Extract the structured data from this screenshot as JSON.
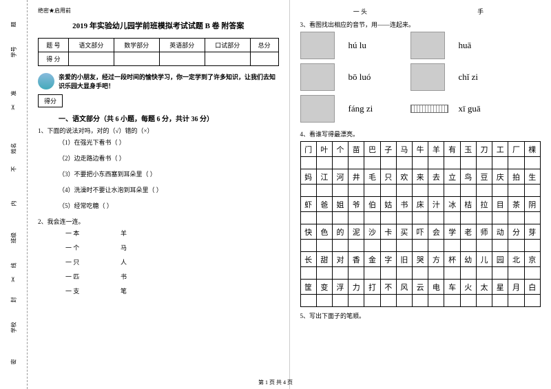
{
  "sidebar": {
    "items": [
      "题",
      "号",
      "学号",
      "准",
      "姓名",
      "不",
      "内",
      "班级",
      "线",
      "封",
      "学校",
      "密"
    ]
  },
  "header_label": "绝密★启用前",
  "title": "2019 年实验幼儿园学前班模拟考试试题 B 卷 附答案",
  "score_table": {
    "row1": [
      "题 号",
      "语文部分",
      "数学部分",
      "英语部分",
      "口试部分",
      "总分"
    ],
    "row2": [
      "得 分",
      "",
      "",
      "",
      "",
      ""
    ]
  },
  "intro": "亲爱的小朋友，经过一段时间的愉快学习，你一定学到了许多知识，让我们去知识乐园大显身手吧！",
  "score_box": "得分",
  "section1_title": "一、语文部分（共 6 小题，每题 6 分，共计 36 分）",
  "q1": "1、下面的说法对吗，对的（√）错的（×）",
  "q1_items": [
    "（1）在强光下看书（  ）",
    "（2）边走路边看书（  ）",
    "（3）不要把小东西塞到耳朵里（  ）",
    "（4）洗澡时不要让水泡到耳朵里（  ）",
    "（5）经常吃糖（  ）"
  ],
  "q2": "2、我会连一连。",
  "q2_matches": [
    {
      "left": "一 本",
      "right": "羊"
    },
    {
      "left": "一 个",
      "right": "马"
    },
    {
      "left": "一 只",
      "right": "人"
    },
    {
      "left": "一 匹",
      "right": "书"
    },
    {
      "left": "一 支",
      "right": "笔"
    }
  ],
  "top_match": {
    "left": "一 头",
    "right": "手"
  },
  "q3": "3、看图找出相应的音节，用——连起来。",
  "pinyin_items": [
    {
      "text": "hú lu"
    },
    {
      "text": "huā"
    },
    {
      "text": "bō luó"
    },
    {
      "text": "chǐ zi"
    },
    {
      "text": "fáng zi"
    },
    {
      "text": "xī guā"
    }
  ],
  "q4": "4、看谁写得最漂亮。",
  "char_grid": [
    [
      "门",
      "叶",
      "个",
      "苗",
      "巴",
      "子",
      "马",
      "牛",
      "羊",
      "有",
      "玉",
      "刀",
      "工",
      "厂",
      "棵"
    ],
    [
      "",
      "",
      "",
      "",
      "",
      "",
      "",
      "",
      "",
      "",
      "",
      "",
      "",
      "",
      ""
    ],
    [
      "妈",
      "江",
      "河",
      "井",
      "毛",
      "只",
      "欢",
      "来",
      "去",
      "立",
      "鸟",
      "豆",
      "庆",
      "拍",
      "生"
    ],
    [
      "",
      "",
      "",
      "",
      "",
      "",
      "",
      "",
      "",
      "",
      "",
      "",
      "",
      "",
      ""
    ],
    [
      "虾",
      "爸",
      "姐",
      "爷",
      "伯",
      "姑",
      "书",
      "床",
      "汁",
      "冰",
      "桔",
      "拉",
      "目",
      "茶",
      "阴"
    ],
    [
      "",
      "",
      "",
      "",
      "",
      "",
      "",
      "",
      "",
      "",
      "",
      "",
      "",
      "",
      ""
    ],
    [
      "快",
      "色",
      "的",
      "泥",
      "沙",
      "卡",
      "买",
      "吓",
      "会",
      "学",
      "老",
      "师",
      "动",
      "分",
      "芽"
    ],
    [
      "",
      "",
      "",
      "",
      "",
      "",
      "",
      "",
      "",
      "",
      "",
      "",
      "",
      "",
      ""
    ],
    [
      "长",
      "甜",
      "对",
      "香",
      "金",
      "字",
      "旧",
      "哭",
      "方",
      "杯",
      "幼",
      "儿",
      "园",
      "北",
      "京"
    ],
    [
      "",
      "",
      "",
      "",
      "",
      "",
      "",
      "",
      "",
      "",
      "",
      "",
      "",
      "",
      ""
    ],
    [
      "筐",
      "变",
      "浮",
      "力",
      "打",
      "不",
      "风",
      "云",
      "电",
      "车",
      "火",
      "太",
      "星",
      "月",
      "白"
    ],
    [
      "",
      "",
      "",
      "",
      "",
      "",
      "",
      "",
      "",
      "",
      "",
      "",
      "",
      "",
      ""
    ]
  ],
  "q5": "5、写出下面子的笔顺。",
  "footer": "第 1 页 共 4 页"
}
